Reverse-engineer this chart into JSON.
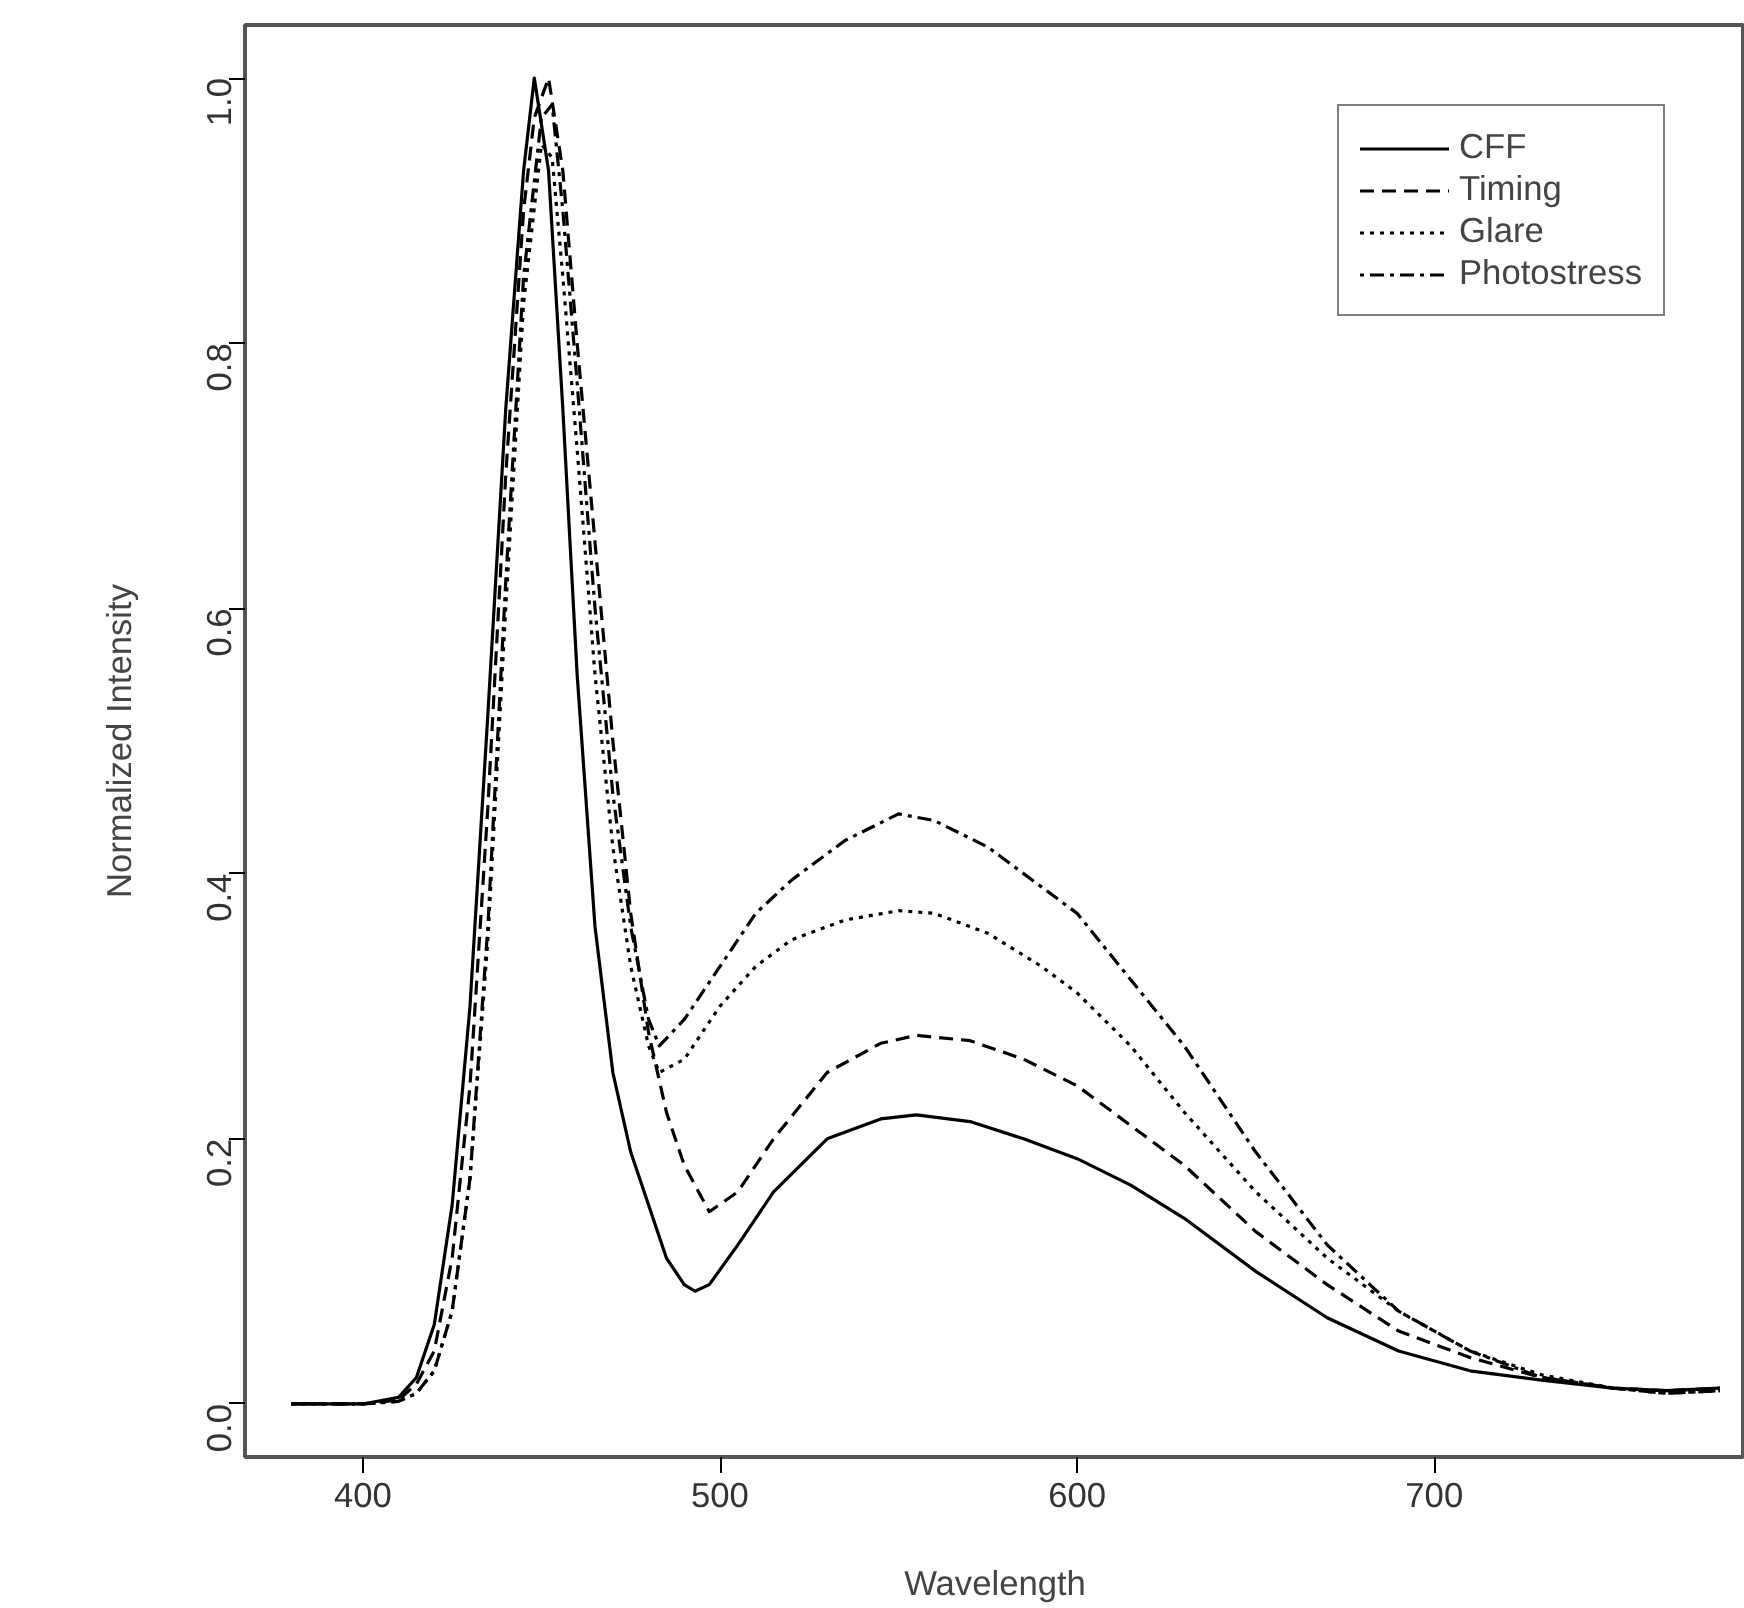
{
  "chart_data": {
    "type": "line",
    "xlabel": "Wavelength",
    "ylabel": "Normalized Intensity",
    "xlim": [
      367,
      787
    ],
    "ylim": [
      -0.04,
      1.04
    ],
    "xticks": [
      400,
      500,
      600,
      700
    ],
    "yticks": [
      {
        "value": 0,
        "label": "0.0"
      },
      {
        "value": 0.2,
        "label": "0.2"
      },
      {
        "value": 0.4,
        "label": "0.4"
      },
      {
        "value": 0.6,
        "label": "0.6"
      },
      {
        "value": 0.8,
        "label": "0.8"
      },
      {
        "value": 1,
        "label": "1.0"
      }
    ],
    "grid": false,
    "legend": "top right",
    "marker": "none",
    "series": [
      {
        "name": "CFF",
        "color": "#000000",
        "line_style": "solid",
        "x": [
          380,
          400,
          410,
          415,
          420,
          425,
          430,
          435,
          440,
          445,
          448,
          452,
          456,
          460,
          465,
          470,
          475,
          480,
          485,
          490,
          493,
          497,
          505,
          515,
          530,
          545,
          555,
          570,
          585,
          600,
          615,
          630,
          650,
          670,
          690,
          710,
          730,
          750,
          765,
          780
        ],
        "values": [
          0,
          0,
          0.005,
          0.02,
          0.06,
          0.15,
          0.3,
          0.52,
          0.75,
          0.93,
          1.0,
          0.93,
          0.75,
          0.55,
          0.36,
          0.25,
          0.19,
          0.15,
          0.11,
          0.09,
          0.085,
          0.09,
          0.12,
          0.16,
          0.2,
          0.215,
          0.218,
          0.213,
          0.2,
          0.185,
          0.165,
          0.14,
          0.1,
          0.065,
          0.04,
          0.025,
          0.018,
          0.012,
          0.01,
          0.012
        ]
      },
      {
        "name": "Timing",
        "color": "#000000",
        "line_style": "dashed",
        "x": [
          380,
          400,
          410,
          415,
          420,
          425,
          430,
          435,
          440,
          445,
          448,
          452,
          456,
          460,
          465,
          470,
          475,
          480,
          485,
          490,
          497,
          505,
          515,
          530,
          545,
          555,
          570,
          585,
          600,
          615,
          630,
          650,
          670,
          690,
          710,
          730,
          750,
          765,
          780
        ],
        "values": [
          0,
          0,
          0.003,
          0.015,
          0.04,
          0.11,
          0.24,
          0.45,
          0.7,
          0.9,
          0.97,
          1.0,
          0.93,
          0.8,
          0.65,
          0.5,
          0.37,
          0.28,
          0.22,
          0.18,
          0.145,
          0.16,
          0.2,
          0.25,
          0.272,
          0.278,
          0.274,
          0.26,
          0.24,
          0.21,
          0.18,
          0.13,
          0.09,
          0.055,
          0.035,
          0.02,
          0.012,
          0.01,
          0.012
        ]
      },
      {
        "name": "Glare",
        "color": "#000000",
        "line_style": "dotted",
        "x": [
          380,
          400,
          410,
          415,
          420,
          425,
          430,
          435,
          440,
          445,
          450,
          453,
          456,
          460,
          465,
          470,
          475,
          480,
          483,
          490,
          500,
          510,
          520,
          535,
          550,
          560,
          575,
          590,
          600,
          615,
          630,
          650,
          670,
          690,
          710,
          730,
          750,
          765,
          780
        ],
        "values": [
          0,
          0,
          0.002,
          0.008,
          0.025,
          0.07,
          0.17,
          0.35,
          0.6,
          0.83,
          0.95,
          0.94,
          0.85,
          0.72,
          0.55,
          0.42,
          0.33,
          0.27,
          0.25,
          0.26,
          0.3,
          0.33,
          0.35,
          0.365,
          0.372,
          0.37,
          0.355,
          0.33,
          0.31,
          0.27,
          0.22,
          0.16,
          0.11,
          0.07,
          0.04,
          0.022,
          0.012,
          0.008,
          0.01
        ]
      },
      {
        "name": "Photostress",
        "color": "#000000",
        "line_style": "dashdot",
        "x": [
          380,
          400,
          410,
          415,
          420,
          425,
          430,
          435,
          440,
          445,
          450,
          453,
          456,
          460,
          465,
          470,
          475,
          480,
          483,
          490,
          500,
          510,
          520,
          535,
          550,
          560,
          575,
          590,
          600,
          615,
          630,
          650,
          670,
          690,
          710,
          730,
          750,
          765,
          780
        ],
        "values": [
          0,
          0,
          0.002,
          0.008,
          0.025,
          0.07,
          0.17,
          0.36,
          0.62,
          0.85,
          0.97,
          0.98,
          0.9,
          0.77,
          0.6,
          0.46,
          0.36,
          0.29,
          0.27,
          0.29,
          0.33,
          0.37,
          0.395,
          0.425,
          0.445,
          0.44,
          0.42,
          0.39,
          0.37,
          0.32,
          0.27,
          0.19,
          0.12,
          0.07,
          0.04,
          0.02,
          0.012,
          0.008,
          0.01
        ]
      }
    ]
  }
}
